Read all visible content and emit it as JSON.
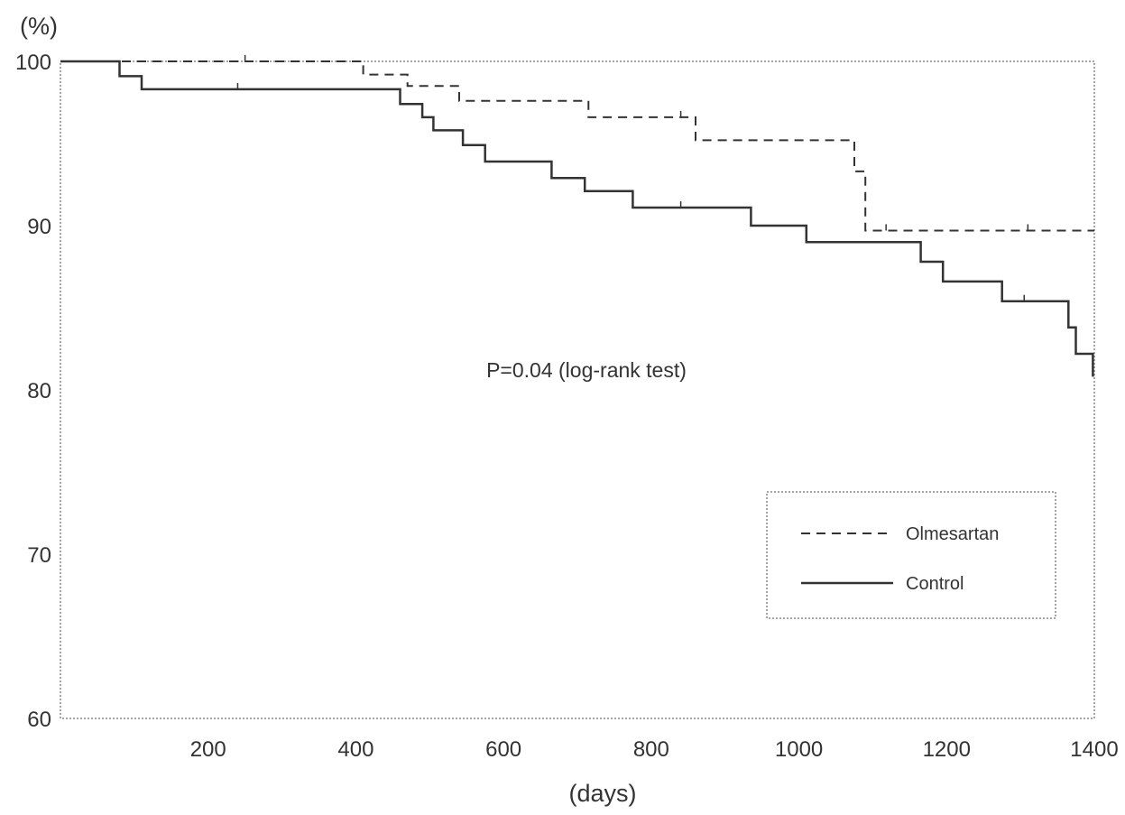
{
  "chart_data": {
    "type": "line",
    "title": "",
    "xlabel": "(days)",
    "ylabel": "(%)",
    "xlim": [
      0,
      1400
    ],
    "ylim": [
      60,
      100
    ],
    "x_ticks": [
      200,
      400,
      600,
      800,
      1000,
      1200,
      1400
    ],
    "y_ticks": [
      100,
      90,
      80,
      70,
      60
    ],
    "grid": false,
    "legend_position": "bottom-right",
    "annotation": "P=0.04 (log-rank test)",
    "series": [
      {
        "name": "Olmesartan",
        "style": "dashed",
        "color": "#333333",
        "points": [
          [
            0,
            100
          ],
          [
            410,
            100
          ],
          [
            410,
            99.2
          ],
          [
            470,
            99.2
          ],
          [
            470,
            98.5
          ],
          [
            540,
            98.5
          ],
          [
            540,
            97.6
          ],
          [
            715,
            97.6
          ],
          [
            715,
            96.6
          ],
          [
            860,
            96.6
          ],
          [
            860,
            95.2
          ],
          [
            1075,
            95.2
          ],
          [
            1075,
            93.3
          ],
          [
            1090,
            93.3
          ],
          [
            1090,
            89.7
          ],
          [
            1400,
            89.7
          ]
        ],
        "censor_x": [
          250,
          840,
          1118,
          1310
        ]
      },
      {
        "name": "Control",
        "style": "solid",
        "color": "#333333",
        "points": [
          [
            0,
            100
          ],
          [
            80,
            100
          ],
          [
            80,
            99.1
          ],
          [
            110,
            99.1
          ],
          [
            110,
            98.3
          ],
          [
            460,
            98.3
          ],
          [
            460,
            97.4
          ],
          [
            490,
            97.4
          ],
          [
            490,
            96.6
          ],
          [
            505,
            96.6
          ],
          [
            505,
            95.8
          ],
          [
            545,
            95.8
          ],
          [
            545,
            94.9
          ],
          [
            575,
            94.9
          ],
          [
            575,
            93.9
          ],
          [
            665,
            93.9
          ],
          [
            665,
            92.9
          ],
          [
            710,
            92.9
          ],
          [
            710,
            92.1
          ],
          [
            775,
            92.1
          ],
          [
            775,
            91.1
          ],
          [
            935,
            91.1
          ],
          [
            935,
            90.0
          ],
          [
            1010,
            90.0
          ],
          [
            1010,
            89.0
          ],
          [
            1165,
            89.0
          ],
          [
            1165,
            87.8
          ],
          [
            1195,
            87.8
          ],
          [
            1195,
            86.6
          ],
          [
            1275,
            86.6
          ],
          [
            1275,
            85.4
          ],
          [
            1365,
            85.4
          ],
          [
            1365,
            83.8
          ],
          [
            1375,
            83.8
          ],
          [
            1375,
            82.2
          ],
          [
            1398,
            82.2
          ],
          [
            1398,
            80.8
          ]
        ],
        "censor_x": [
          240,
          840,
          1305
        ]
      }
    ]
  }
}
